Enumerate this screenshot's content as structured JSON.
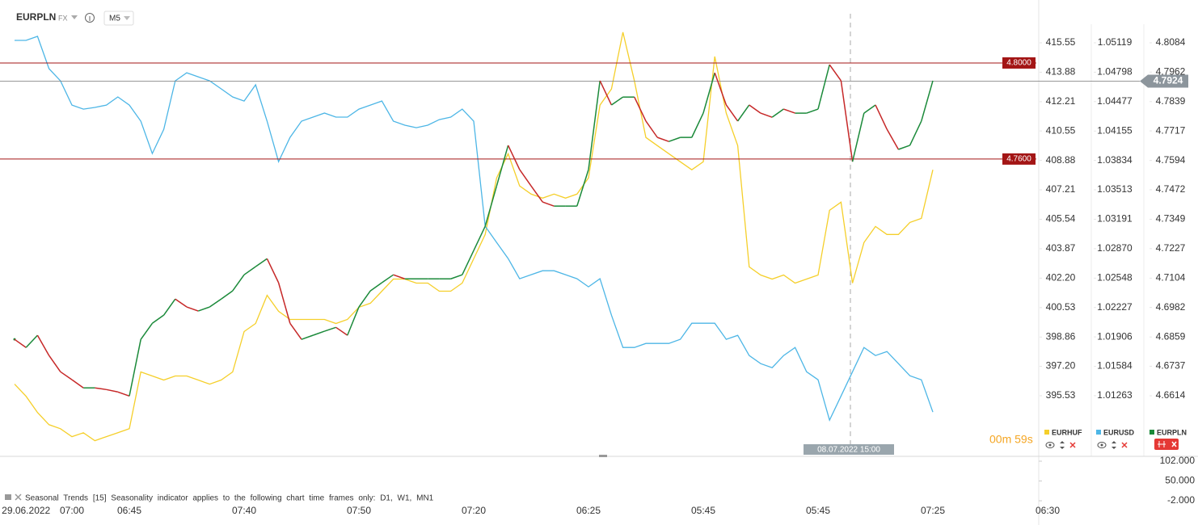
{
  "header": {
    "symbol": "EURPLN",
    "market": "FX",
    "timeframe": "M5"
  },
  "countdown": "00m 59s",
  "crosshair_label": "08.07.2022 15:00",
  "indicator_pane": {
    "title": "Seasonal Trends [15] Seasonality indicator applies to the following chart time frames only: D1, W1, MN1",
    "ylim": [
      -2,
      102
    ],
    "yticks": [
      {
        "value": 102,
        "label": "102.000"
      },
      {
        "value": 50,
        "label": "50.000"
      },
      {
        "value": -2,
        "label": "-2.000"
      }
    ]
  },
  "chart_data": [
    {
      "type": "line",
      "categories": [
        null,
        "29.06.2022",
        null,
        null,
        null,
        "07:00",
        null,
        null,
        null,
        null,
        "06:45",
        null,
        null,
        null,
        null,
        null,
        null,
        null,
        null,
        null,
        "07:40",
        null,
        null,
        null,
        null,
        null,
        null,
        null,
        null,
        null,
        "07:50",
        null,
        null,
        null,
        null,
        null,
        null,
        null,
        null,
        null,
        "07:20",
        null,
        null,
        null,
        null,
        null,
        null,
        null,
        null,
        null,
        "06:25",
        null,
        null,
        null,
        null,
        null,
        null,
        null,
        null,
        null,
        "05:45",
        null,
        null,
        null,
        null,
        null,
        null,
        null,
        null,
        null,
        "05:45",
        null,
        null,
        null,
        null,
        null,
        null,
        null,
        null,
        null,
        "07:25",
        null,
        null,
        null,
        null,
        null,
        null,
        null,
        null,
        null,
        "06:30"
      ],
      "series": [
        {
          "name": "EURHUF",
          "color": "#f5cf2a",
          "values": [
            396.19,
            395.5,
            394.58,
            393.89,
            393.66,
            393.21,
            393.43,
            392.98,
            393.21,
            393.43,
            393.66,
            396.88,
            396.65,
            396.42,
            396.65,
            396.65,
            396.42,
            396.19,
            396.42,
            396.88,
            399.17,
            399.63,
            401.23,
            400.32,
            399.86,
            399.86,
            399.86,
            399.86,
            399.63,
            399.86,
            400.55,
            400.78,
            401.46,
            402.15,
            402.15,
            401.92,
            401.92,
            401.46,
            401.46,
            401.92,
            403.3,
            404.68,
            407.89,
            409.26,
            407.43,
            406.97,
            406.74,
            406.97,
            406.74,
            406.97,
            407.89,
            412.02,
            412.93,
            416.15,
            413.39,
            410.18,
            409.72,
            409.26,
            408.8,
            408.35,
            408.8,
            414.77,
            411.56,
            409.72,
            402.84,
            402.38,
            402.15,
            402.38,
            401.92,
            402.15,
            402.38,
            406.05,
            406.51,
            401.92,
            404.22,
            405.13,
            404.68,
            404.68,
            405.36,
            405.59,
            408.35,
            null,
            null,
            null,
            null,
            null,
            null,
            null,
            null,
            null,
            null
          ]
        }
      ],
      "ylim": [
        392.23,
        417.2
      ],
      "yticks": [
        415.55,
        413.88,
        412.21,
        410.55,
        408.88,
        407.21,
        405.54,
        403.87,
        {
          "value": 402.2,
          "label": "402.20"
        },
        400.53,
        398.86,
        {
          "value": 397.2,
          "label": "397.20"
        },
        395.53
      ]
    },
    {
      "type": "line",
      "series": [
        {
          "name": "EURUSD",
          "color": "#4db6e6",
          "values": [
            1.05146,
            1.05146,
            1.0519,
            1.04837,
            1.04704,
            1.04439,
            1.04395,
            1.04413,
            1.04439,
            1.04528,
            1.04439,
            1.04263,
            1.03909,
            1.04174,
            1.04704,
            1.04792,
            1.04748,
            1.04704,
            1.04616,
            1.04528,
            1.04483,
            1.0466,
            1.04263,
            1.03821,
            1.04086,
            1.04263,
            1.04307,
            1.04351,
            1.04307,
            1.04307,
            1.04395,
            1.04439,
            1.04483,
            1.04263,
            1.04219,
            1.04192,
            1.04219,
            1.0428,
            1.04307,
            1.04395,
            1.04263,
            1.03115,
            1.02938,
            1.02762,
            1.02541,
            1.02585,
            1.02629,
            1.02629,
            1.02585,
            1.02541,
            1.02453,
            1.02541,
            1.02143,
            1.0179,
            1.0179,
            1.01834,
            1.01834,
            1.01834,
            1.01879,
            1.02055,
            1.02055,
            1.02055,
            1.01879,
            1.01923,
            1.01702,
            1.01614,
            1.0157,
            1.01702,
            1.0179,
            1.01525,
            1.01437,
            1.00996,
            1.0126,
            1.01525,
            1.0179,
            1.01702,
            1.01746,
            1.01614,
            1.01481,
            1.01437,
            1.01084,
            null,
            null,
            null,
            null,
            null,
            null,
            null,
            null,
            null,
            null
          ]
        }
      ],
      "ylim": [
        1.00627,
        1.05437
      ],
      "yticks": [
        1.05119,
        1.04798,
        1.04477,
        1.04155,
        1.03834,
        1.03513,
        1.03191,
        {
          "value": 1.0287,
          "label": "1.02870"
        },
        1.02548,
        1.02227,
        1.01906,
        1.01584,
        1.01263
      ]
    },
    {
      "type": "line",
      "up_color": "#1b8a3a",
      "down_color": "#c62828",
      "series": [
        {
          "name": "EURPLN",
          "color": "#1b8a3a",
          "values": [
            4.6849,
            4.6815,
            4.6866,
            4.6782,
            4.6714,
            4.6681,
            4.6647,
            4.6647,
            4.664,
            4.663,
            4.6613,
            4.6849,
            4.6916,
            4.695,
            4.7017,
            4.6984,
            4.6967,
            4.6984,
            4.7017,
            4.7051,
            4.7118,
            4.7152,
            4.7185,
            4.7085,
            4.6916,
            4.6849,
            4.6866,
            4.6883,
            4.6899,
            4.6866,
            4.6984,
            4.7051,
            4.7085,
            4.7118,
            4.7101,
            4.7101,
            4.7101,
            4.7101,
            4.7101,
            4.7118,
            4.7219,
            4.732,
            4.7488,
            4.7657,
            4.7556,
            4.7488,
            4.7421,
            4.7404,
            4.7404,
            4.7404,
            4.7556,
            4.7926,
            4.7825,
            4.7858,
            4.7858,
            4.7758,
            4.769,
            4.7673,
            4.769,
            4.769,
            4.7791,
            4.7959,
            4.7825,
            4.7758,
            4.7825,
            4.7791,
            4.7774,
            4.7808,
            4.7791,
            4.7791,
            4.7808,
            4.7993,
            4.7926,
            4.7589,
            4.7791,
            4.7825,
            4.7724,
            4.764,
            4.7657,
            4.7758,
            4.7926,
            null,
            null,
            null,
            null,
            null,
            null,
            null,
            null,
            null,
            null
          ]
        }
      ],
      "ylim": [
        4.6372,
        4.8205
      ],
      "yticks": [
        4.8084,
        4.7962,
        4.7839,
        4.7717,
        4.7594,
        4.7472,
        4.7349,
        4.7227,
        4.7104,
        4.6982,
        4.6859,
        4.6737,
        4.6614
      ],
      "levels": [
        {
          "value": 4.8,
          "label": "4.8000"
        },
        {
          "value": 4.76,
          "label": "4.7600"
        }
      ],
      "last_price": {
        "value": 4.7924,
        "label": "4.7924"
      }
    }
  ]
}
